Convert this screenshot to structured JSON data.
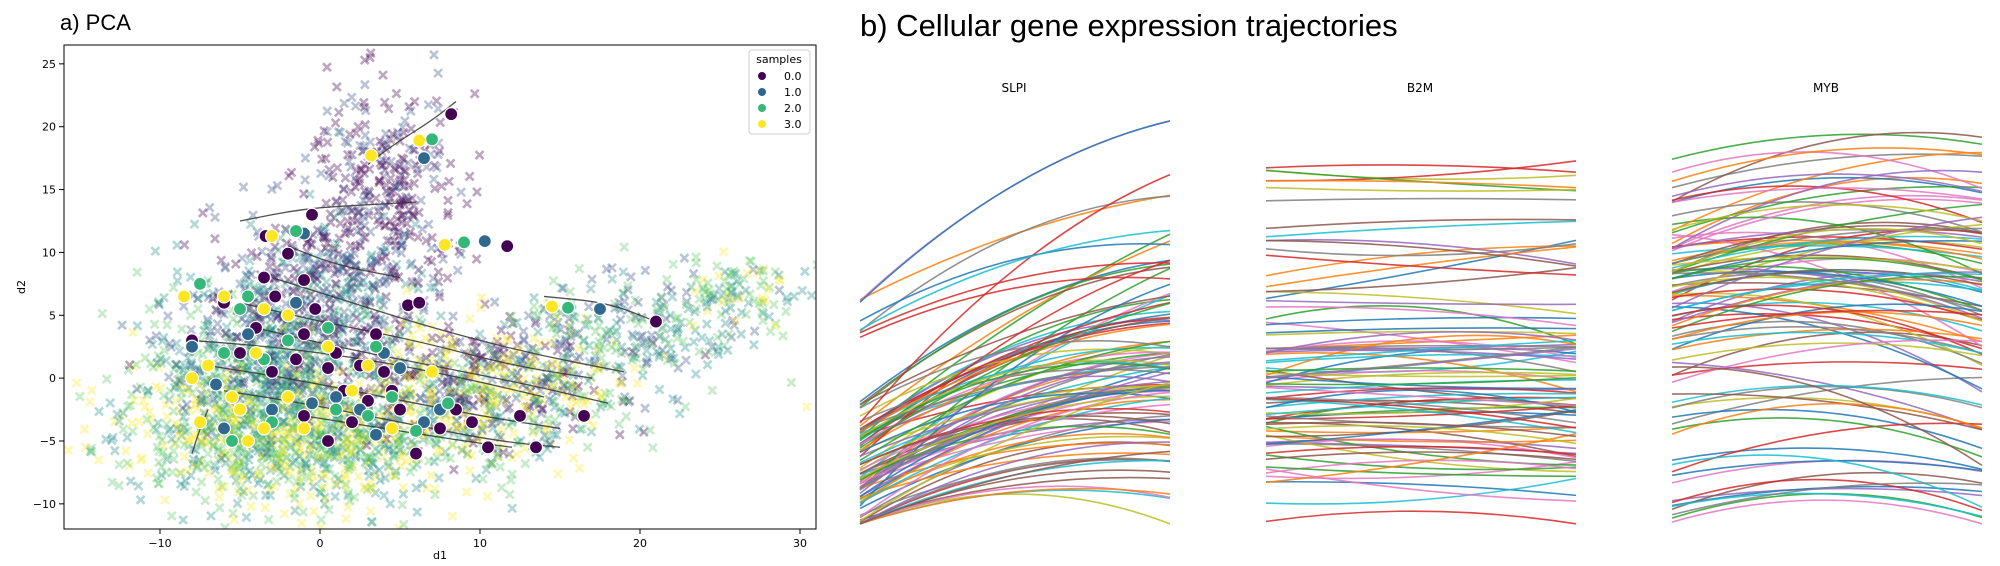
{
  "chart_data": [
    {
      "type": "scatter",
      "title": "a) PCA",
      "xlabel": "d1",
      "ylabel": "d2",
      "xlim": [
        -16,
        31
      ],
      "ylim": [
        -12,
        26.5
      ],
      "xticks": [
        -10,
        0,
        10,
        20,
        30
      ],
      "xtick_labels": [
        "−10",
        "0",
        "10",
        "20",
        "30"
      ],
      "yticks": [
        -10,
        -5,
        0,
        5,
        10,
        15,
        20,
        25
      ],
      "ytick_labels": [
        "−10",
        "−5",
        "0",
        "5",
        "10",
        "15",
        "20",
        "25"
      ],
      "legend": {
        "title": "samples",
        "position": "top-right",
        "entries": [
          "0.0",
          "1.0",
          "2.0",
          "3.0"
        ],
        "colors": [
          "#440154",
          "#31688e",
          "#35b779",
          "#fde725"
        ]
      },
      "highlighted_points": [
        {
          "sample": "0.0",
          "points": [
            [
              -0.5,
              13
            ],
            [
              -3.4,
              11.3
            ],
            [
              -2,
              9.9
            ],
            [
              -1,
              7.8
            ],
            [
              -3.5,
              8
            ],
            [
              -0.3,
              5.5
            ],
            [
              -2.8,
              6.5
            ],
            [
              -6,
              6
            ],
            [
              -8,
              3
            ],
            [
              -5,
              2
            ],
            [
              -3,
              0.5
            ],
            [
              -1.5,
              1.5
            ],
            [
              1,
              2
            ],
            [
              2.5,
              1
            ],
            [
              4,
              0.5
            ],
            [
              1.5,
              -1
            ],
            [
              3,
              -1.8
            ],
            [
              5,
              -2.5
            ],
            [
              -1,
              -3
            ],
            [
              0.5,
              -5
            ],
            [
              6,
              -6
            ],
            [
              7.5,
              -4
            ],
            [
              8.5,
              -2.5
            ],
            [
              9.5,
              -3.5
            ],
            [
              10.5,
              -5.5
            ],
            [
              12.5,
              -3
            ],
            [
              13.5,
              -5.5
            ],
            [
              16.5,
              -3
            ],
            [
              21,
              4.5
            ],
            [
              11.7,
              10.5
            ],
            [
              8.2,
              21
            ],
            [
              3.5,
              3.5
            ],
            [
              5.5,
              5.8
            ],
            [
              6.2,
              6
            ],
            [
              -4,
              4
            ],
            [
              2,
              -3.5
            ],
            [
              -1,
              3.5
            ],
            [
              0.5,
              0.8
            ],
            [
              4.5,
              -1
            ]
          ]
        },
        {
          "sample": "1.0",
          "points": [
            [
              17.5,
              5.5
            ],
            [
              10.3,
              10.9
            ],
            [
              6.5,
              17.5
            ],
            [
              -1,
              11.5
            ],
            [
              -4.5,
              3.5
            ],
            [
              -6.5,
              -0.5
            ],
            [
              -0.5,
              -2
            ],
            [
              1,
              -1.5
            ],
            [
              3.5,
              -4.5
            ],
            [
              6.5,
              -3.5
            ],
            [
              4,
              2
            ],
            [
              -3,
              -2.5
            ],
            [
              -8,
              2.5
            ],
            [
              -6,
              -4
            ],
            [
              2.5,
              -2.5
            ],
            [
              5,
              0.8
            ],
            [
              7.5,
              -2.5
            ],
            [
              -1.5,
              6
            ]
          ]
        },
        {
          "sample": "2.0",
          "points": [
            [
              -1.5,
              11.7
            ],
            [
              -7.5,
              7.5
            ],
            [
              -4.5,
              6.5
            ],
            [
              -5,
              5.5
            ],
            [
              -2,
              3
            ],
            [
              0.5,
              4
            ],
            [
              -6,
              2
            ],
            [
              -3.5,
              1.5
            ],
            [
              -5.5,
              -5
            ],
            [
              1,
              -2.5
            ],
            [
              3,
              -3
            ],
            [
              4.5,
              -1.5
            ],
            [
              6,
              -4.2
            ],
            [
              8,
              -2
            ],
            [
              15.5,
              5.6
            ],
            [
              9,
              10.8
            ],
            [
              7,
              19
            ],
            [
              -3,
              -3.5
            ],
            [
              3.5,
              2.5
            ]
          ]
        },
        {
          "sample": "3.0",
          "points": [
            [
              -3,
              11.3
            ],
            [
              3.2,
              17.7
            ],
            [
              6.2,
              18.9
            ],
            [
              7.8,
              10.6
            ],
            [
              14.5,
              5.7
            ],
            [
              -8.5,
              6.5
            ],
            [
              -6,
              6.5
            ],
            [
              -3.5,
              5.5
            ],
            [
              -7,
              1
            ],
            [
              -5,
              -2.5
            ],
            [
              -7.5,
              -3.5
            ],
            [
              -2,
              -1.5
            ],
            [
              -3.5,
              -4
            ],
            [
              -4.5,
              -5
            ],
            [
              -1,
              -4
            ],
            [
              0.5,
              2.5
            ],
            [
              3,
              1
            ],
            [
              4.5,
              -4
            ],
            [
              7,
              0.5
            ],
            [
              -2,
              5
            ],
            [
              -8,
              0
            ],
            [
              -4,
              2
            ],
            [
              2,
              -1
            ],
            [
              -5.5,
              -1.5
            ]
          ]
        }
      ],
      "trajectories": [
        [
          [
            -8,
            3
          ],
          [
            -3,
            2.5
          ],
          [
            3,
            1.5
          ],
          [
            9,
            0
          ],
          [
            14,
            -1.5
          ]
        ],
        [
          [
            -5,
            6
          ],
          [
            0,
            4.5
          ],
          [
            6,
            3
          ],
          [
            12,
            1
          ],
          [
            17,
            0
          ]
        ],
        [
          [
            -7,
            1
          ],
          [
            -2,
            0
          ],
          [
            4,
            -1.5
          ],
          [
            10,
            -3
          ],
          [
            15,
            -4
          ]
        ],
        [
          [
            -3,
            8
          ],
          [
            2,
            6
          ],
          [
            7,
            4
          ],
          [
            13,
            2
          ],
          [
            19,
            0.5
          ]
        ],
        [
          [
            -6,
            -1
          ],
          [
            -1,
            -2
          ],
          [
            5,
            -3.5
          ],
          [
            11,
            -5
          ],
          [
            15,
            -5.5
          ]
        ],
        [
          [
            -2,
            10.5
          ],
          [
            1,
            9
          ],
          [
            5,
            8
          ]
        ],
        [
          [
            3,
            17
          ],
          [
            4.5,
            18.5
          ],
          [
            7,
            20.5
          ],
          [
            8.5,
            22
          ]
        ],
        [
          [
            14,
            6.5
          ],
          [
            18,
            6
          ],
          [
            21,
            4.5
          ]
        ],
        [
          [
            -7,
            -2.5
          ],
          [
            -7.5,
            -4
          ],
          [
            -8,
            -6
          ]
        ],
        [
          [
            -4,
            4
          ],
          [
            1,
            2.5
          ],
          [
            7,
            1
          ],
          [
            13,
            -0.5
          ],
          [
            18,
            -2
          ]
        ],
        [
          [
            -5,
            12.5
          ],
          [
            -1,
            13.5
          ],
          [
            3,
            13.8
          ],
          [
            6,
            14
          ]
        ],
        [
          [
            -1,
            -3
          ],
          [
            4,
            -4
          ],
          [
            9,
            -5
          ],
          [
            12,
            -5.5
          ]
        ]
      ]
    },
    {
      "type": "line",
      "title": "b) Cellular gene expression trajectories",
      "panels": [
        {
          "gene": "SLPI",
          "n_lines": 100,
          "y_start_range": [
            -12,
            7.5
          ],
          "y_end_range": [
            -8.5,
            20.6
          ],
          "trend": "rising"
        },
        {
          "gene": "B2M",
          "n_lines": 90,
          "y_start_range": [
            -10,
            17.5
          ],
          "y_end_range": [
            -12,
            20.6
          ],
          "trend": "flat"
        },
        {
          "gene": "MYB",
          "n_lines": 100,
          "y_start_range": [
            -12,
            17.5
          ],
          "y_end_range": [
            -12,
            20.6
          ],
          "trend": "arched"
        }
      ]
    }
  ],
  "colors": {
    "tab10": [
      "#1f77b4",
      "#ff7f0e",
      "#2ca02c",
      "#d62728",
      "#9467bd",
      "#8c564b",
      "#e377c2",
      "#7f7f7f",
      "#bcbd22",
      "#17becf"
    ],
    "viridis": [
      "#440154",
      "#3b528b",
      "#21908d",
      "#5dc963",
      "#fde725"
    ],
    "trajectory": "#333333"
  }
}
